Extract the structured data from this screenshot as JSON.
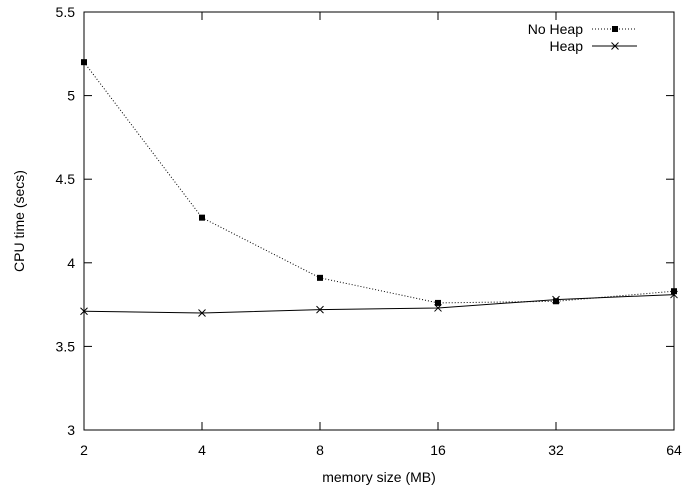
{
  "chart_data": {
    "type": "line",
    "title": "",
    "xlabel": "memory size (MB)",
    "ylabel": "CPU time (secs)",
    "x_scale": "log2",
    "x": [
      2,
      4,
      8,
      16,
      32,
      64
    ],
    "xticks": [
      "2",
      "4",
      "8",
      "16",
      "32",
      "64"
    ],
    "ylim": [
      3,
      5.5
    ],
    "yticks": [
      "3",
      "3.5",
      "4",
      "4.5",
      "5",
      "5.5"
    ],
    "grid": false,
    "legend_position": "top-right",
    "series": [
      {
        "name": "No Heap",
        "marker": "filled-square",
        "line_style": "dotted",
        "values": [
          5.2,
          4.27,
          3.91,
          3.76,
          3.77,
          3.83
        ]
      },
      {
        "name": "Heap",
        "marker": "x",
        "line_style": "solid",
        "values": [
          3.71,
          3.7,
          3.72,
          3.73,
          3.78,
          3.81
        ]
      }
    ]
  }
}
